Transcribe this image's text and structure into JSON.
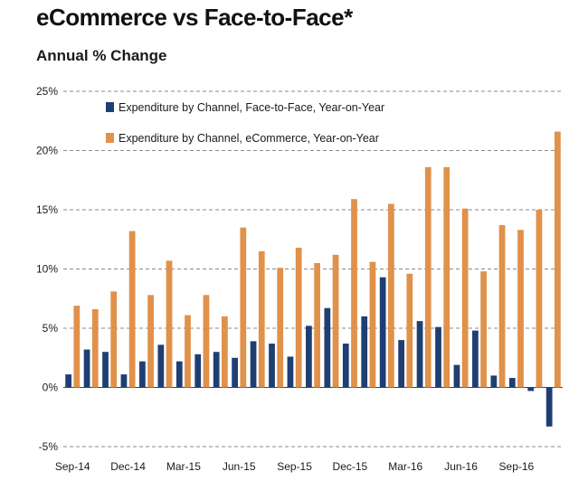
{
  "header": {
    "title": "eCommerce vs Face-to-Face*",
    "subtitle": "Annual % Change"
  },
  "chart_data": {
    "type": "bar",
    "title": "eCommerce vs Face-to-Face*",
    "subtitle": "Annual % Change",
    "xlabel": "",
    "ylabel": "",
    "ylim": [
      -5,
      25
    ],
    "yticks": [
      -5,
      0,
      5,
      10,
      15,
      20,
      25
    ],
    "ytick_labels": [
      "-5%",
      "0%",
      "5%",
      "10%",
      "15%",
      "20%",
      "25%"
    ],
    "grid": "horizontal-dashed",
    "legend_position": "top-left",
    "categories": [
      "Sep-14",
      "Oct-14",
      "Nov-14",
      "Dec-14",
      "Jan-15",
      "Feb-15",
      "Mar-15",
      "Apr-15",
      "May-15",
      "Jun-15",
      "Jul-15",
      "Aug-15",
      "Sep-15",
      "Oct-15",
      "Nov-15",
      "Dec-15",
      "Jan-16",
      "Feb-16",
      "Mar-16",
      "Apr-16",
      "May-16",
      "Jun-16",
      "Jul-16",
      "Aug-16",
      "Sep-16",
      "Oct-16"
    ],
    "xtick_labels": [
      {
        "index": 0,
        "label": "Sep-14"
      },
      {
        "index": 3,
        "label": "Dec-14"
      },
      {
        "index": 6,
        "label": "Mar-15"
      },
      {
        "index": 9,
        "label": "Jun-15"
      },
      {
        "index": 12,
        "label": "Sep-15"
      },
      {
        "index": 15,
        "label": "Dec-15"
      },
      {
        "index": 18,
        "label": "Mar-16"
      },
      {
        "index": 21,
        "label": "Jun-16"
      },
      {
        "index": 24,
        "label": "Sep-16"
      }
    ],
    "series": [
      {
        "name": "Expenditure by Channel, Face-to-Face, Year-on-Year",
        "color": "#1f3f73",
        "values": [
          1.1,
          3.2,
          3.0,
          1.1,
          2.2,
          3.6,
          2.2,
          2.8,
          3.0,
          2.5,
          3.9,
          3.7,
          2.6,
          5.2,
          6.7,
          3.7,
          6.0,
          9.3,
          4.0,
          5.6,
          5.1,
          1.9,
          4.8,
          1.0,
          0.8,
          -0.3
        ]
      },
      {
        "name": "Expenditure by Channel, eCommerce, Year-on-Year",
        "color": "#e0914a",
        "values": [
          6.9,
          6.6,
          8.1,
          13.2,
          7.8,
          10.7,
          6.1,
          7.8,
          6.0,
          13.5,
          11.5,
          10.1,
          11.8,
          10.5,
          11.2,
          15.9,
          10.6,
          15.5,
          9.6,
          18.6,
          18.6,
          15.1,
          9.8,
          13.7,
          13.3,
          15.0
        ]
      }
    ],
    "extra_bars": [
      {
        "series_index": 0,
        "value": -3.3
      },
      {
        "series_index": 1,
        "value": 21.6
      }
    ]
  }
}
